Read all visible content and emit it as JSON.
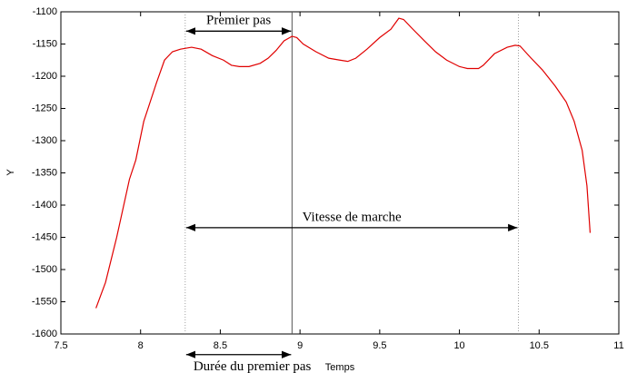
{
  "chart_data": {
    "type": "line",
    "xlabel": "Temps",
    "ylabel": "Y",
    "xlim": [
      7.5,
      11
    ],
    "xticks": [
      7.5,
      8,
      8.5,
      9,
      9.5,
      10,
      10.5,
      11
    ],
    "ylim": [
      -1600,
      -1100
    ],
    "yticks": [
      -1600,
      -1550,
      -1500,
      -1450,
      -1400,
      -1350,
      -1300,
      -1250,
      -1200,
      -1150,
      -1100
    ],
    "grid": false,
    "series": [
      {
        "color": "#e00000",
        "x": [
          7.72,
          7.78,
          7.85,
          7.93,
          7.97,
          8.02,
          8.1,
          8.15,
          8.2,
          8.25,
          8.32,
          8.38,
          8.45,
          8.52,
          8.57,
          8.62,
          8.68,
          8.75,
          8.8,
          8.85,
          8.9,
          8.95,
          8.98,
          9.02,
          9.1,
          9.18,
          9.25,
          9.3,
          9.35,
          9.42,
          9.5,
          9.57,
          9.62,
          9.65,
          9.7,
          9.78,
          9.85,
          9.92,
          10.0,
          10.05,
          10.12,
          10.15,
          10.22,
          10.3,
          10.35,
          10.38,
          10.45,
          10.52,
          10.6,
          10.67,
          10.72,
          10.77,
          10.8,
          10.82
        ],
        "values": [
          -1560,
          -1520,
          -1450,
          -1360,
          -1330,
          -1270,
          -1210,
          -1175,
          -1162,
          -1158,
          -1155,
          -1158,
          -1168,
          -1175,
          -1183,
          -1185,
          -1185,
          -1180,
          -1172,
          -1160,
          -1145,
          -1138,
          -1140,
          -1150,
          -1162,
          -1172,
          -1175,
          -1177,
          -1172,
          -1158,
          -1140,
          -1127,
          -1110,
          -1112,
          -1125,
          -1145,
          -1162,
          -1175,
          -1185,
          -1188,
          -1188,
          -1183,
          -1165,
          -1155,
          -1152,
          -1153,
          -1172,
          -1190,
          -1215,
          -1240,
          -1270,
          -1315,
          -1370,
          -1443
        ]
      }
    ],
    "vlines": [
      8.28,
      8.95,
      10.37
    ],
    "annotations": [
      {
        "text": "Premier pas",
        "x": [
          8.28,
          8.95
        ],
        "y": -1130
      },
      {
        "text": "Vitesse de marche",
        "x": [
          8.28,
          10.37
        ],
        "y": -1435
      },
      {
        "text": "Durée du premier pas",
        "x": [
          8.28,
          8.95
        ],
        "y": -1632
      }
    ]
  }
}
